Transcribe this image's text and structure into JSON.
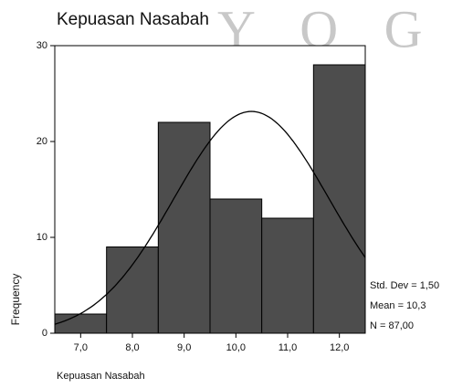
{
  "chart_data": {
    "type": "histogram",
    "title": "Kepuasan Nasabah",
    "watermark": "Y O G Y",
    "x_label": "Kepuasan Nasabah",
    "y_label": "Frequency",
    "bins": [
      6.5,
      7.5,
      8.5,
      9.5,
      10.5,
      11.5,
      12.5
    ],
    "values": [
      2,
      9,
      22,
      14,
      12,
      28
    ],
    "color": "#4d4d4d",
    "xlim": [
      6.5,
      12.5
    ],
    "xticks": [
      {
        "value": 7,
        "label": "7,0"
      },
      {
        "value": 8,
        "label": "8,0"
      },
      {
        "value": 9,
        "label": "9,0"
      },
      {
        "value": 10,
        "label": "10,0"
      },
      {
        "value": 11,
        "label": "11,0"
      },
      {
        "value": 12,
        "label": "12,0"
      }
    ],
    "ylim": [
      0,
      30
    ],
    "yticks": [
      0,
      10,
      20,
      30
    ],
    "stats": {
      "std_dev": {
        "value": 1.5,
        "label": "Std. Dev = 1,50"
      },
      "mean": {
        "value": 10.3,
        "label": "Mean = 10,3"
      },
      "n": {
        "value": 87,
        "label": "N = 87,00"
      }
    },
    "normal_curve": true
  }
}
